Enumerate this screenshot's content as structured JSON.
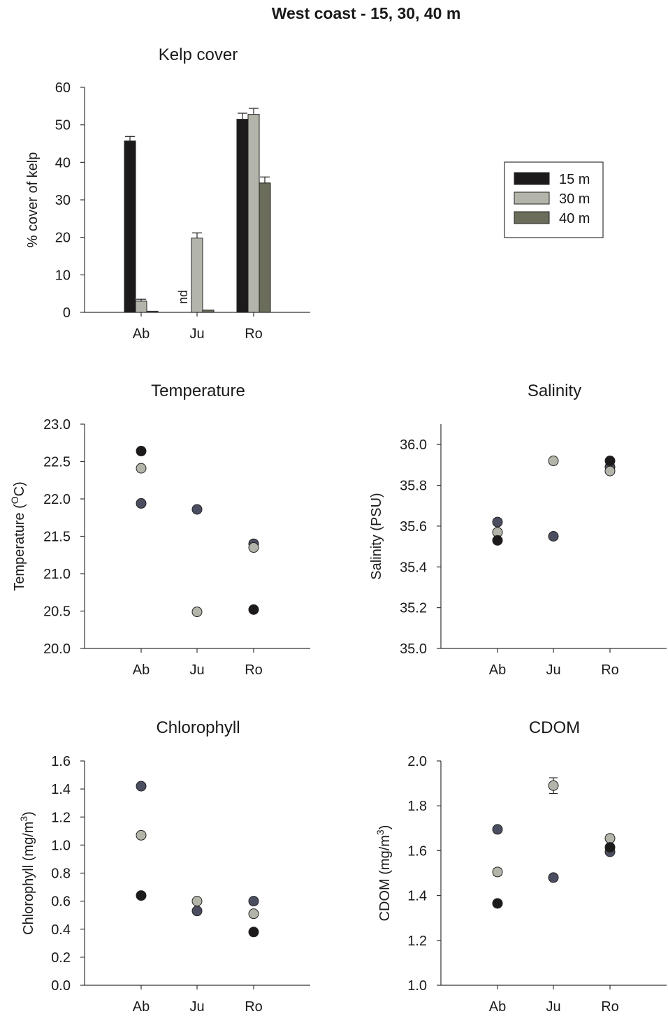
{
  "figure_title": "West coast - 15, 30, 40 m",
  "colors": {
    "15 m": "#1c1a1b",
    "30 m": "#b4b5aa",
    "40 m": "#6b6d5a",
    "axis": "#333333"
  },
  "chart_data": [
    {
      "type": "bar",
      "title": "Kelp cover",
      "ylabel": "% cover of kelp",
      "xlabel": "",
      "categories": [
        "Ab",
        "Ju",
        "Ro"
      ],
      "ylim": [
        0,
        60
      ],
      "yticks": [
        "0",
        "10",
        "20",
        "30",
        "40",
        "50",
        "60"
      ],
      "series": [
        {
          "name": "15 m",
          "values": [
            45.7,
            null,
            51.5
          ],
          "errors": [
            1.2,
            null,
            1.6
          ]
        },
        {
          "name": "30 m",
          "values": [
            3.0,
            19.8,
            52.8
          ],
          "errors": [
            0.5,
            1.4,
            1.6
          ]
        },
        {
          "name": "40 m",
          "values": [
            0.3,
            0.6,
            34.5
          ],
          "errors": [
            null,
            null,
            1.6
          ]
        }
      ],
      "annotations": [
        {
          "category": "Ju",
          "series": "15 m",
          "text": "nd"
        }
      ],
      "legend": {
        "position": "right",
        "entries": [
          "15 m",
          "30 m",
          "40 m"
        ]
      }
    },
    {
      "type": "scatter",
      "title": "Temperature",
      "ylabel": "Temperature (ºC)",
      "ylabel_parts": [
        "Temperature (",
        "O",
        "C)"
      ],
      "categories": [
        "Ab",
        "Ju",
        "Ro"
      ],
      "ylim": [
        20.0,
        23.0
      ],
      "yticks": [
        "20.0",
        "20.5",
        "21.0",
        "21.5",
        "22.0",
        "22.5",
        "23.0"
      ],
      "series": [
        {
          "name": "15 m",
          "values": [
            22.64,
            null,
            20.52
          ]
        },
        {
          "name": "30 m",
          "values": [
            22.41,
            20.49,
            21.35
          ]
        },
        {
          "name": "40 m",
          "values": [
            21.94,
            21.86,
            21.4
          ]
        }
      ]
    },
    {
      "type": "scatter",
      "title": "Salinity",
      "ylabel": "Salinity (PSU)",
      "categories": [
        "Ab",
        "Ju",
        "Ro"
      ],
      "ylim": [
        35.0,
        36.1
      ],
      "yticks": [
        "35.0",
        "35.2",
        "35.4",
        "35.6",
        "35.8",
        "36.0"
      ],
      "series": [
        {
          "name": "15 m",
          "values": [
            35.53,
            null,
            35.92
          ]
        },
        {
          "name": "30 m",
          "values": [
            35.57,
            35.92,
            35.87
          ]
        },
        {
          "name": "40 m",
          "values": [
            35.62,
            35.55,
            35.89
          ]
        }
      ]
    },
    {
      "type": "scatter",
      "title": "Chlorophyll",
      "ylabel": "Chlorophyll (mg/m³)",
      "ylabel_parts": [
        "Chlorophyll (mg/m",
        "3",
        ")"
      ],
      "categories": [
        "Ab",
        "Ju",
        "Ro"
      ],
      "ylim": [
        0.0,
        1.6
      ],
      "yticks": [
        "0.0",
        "0.2",
        "0.4",
        "0.6",
        "0.8",
        "1.0",
        "1.2",
        "1.4",
        "1.6"
      ],
      "series": [
        {
          "name": "15 m",
          "values": [
            0.64,
            null,
            0.38
          ]
        },
        {
          "name": "30 m",
          "values": [
            1.07,
            0.6,
            0.51
          ]
        },
        {
          "name": "40 m",
          "values": [
            1.42,
            0.53,
            0.6
          ]
        }
      ]
    },
    {
      "type": "scatter",
      "title": "CDOM",
      "ylabel": "CDOM (mg/m³)",
      "ylabel_parts": [
        "CDOM (mg/m",
        "3",
        ")"
      ],
      "categories": [
        "Ab",
        "Ju",
        "Ro"
      ],
      "ylim": [
        1.0,
        2.0
      ],
      "yticks": [
        "1.0",
        "1.2",
        "1.4",
        "1.6",
        "1.8",
        "2.0"
      ],
      "series": [
        {
          "name": "15 m",
          "values": [
            1.365,
            null,
            1.615
          ],
          "errors": [
            0.012,
            null,
            0.012
          ]
        },
        {
          "name": "30 m",
          "values": [
            1.505,
            1.89,
            1.655
          ],
          "errors": [
            0.015,
            0.035,
            0.015
          ]
        },
        {
          "name": "40 m",
          "values": [
            1.695,
            1.48,
            1.595
          ],
          "errors": [
            0.012,
            0.012,
            0.012
          ]
        }
      ]
    }
  ]
}
